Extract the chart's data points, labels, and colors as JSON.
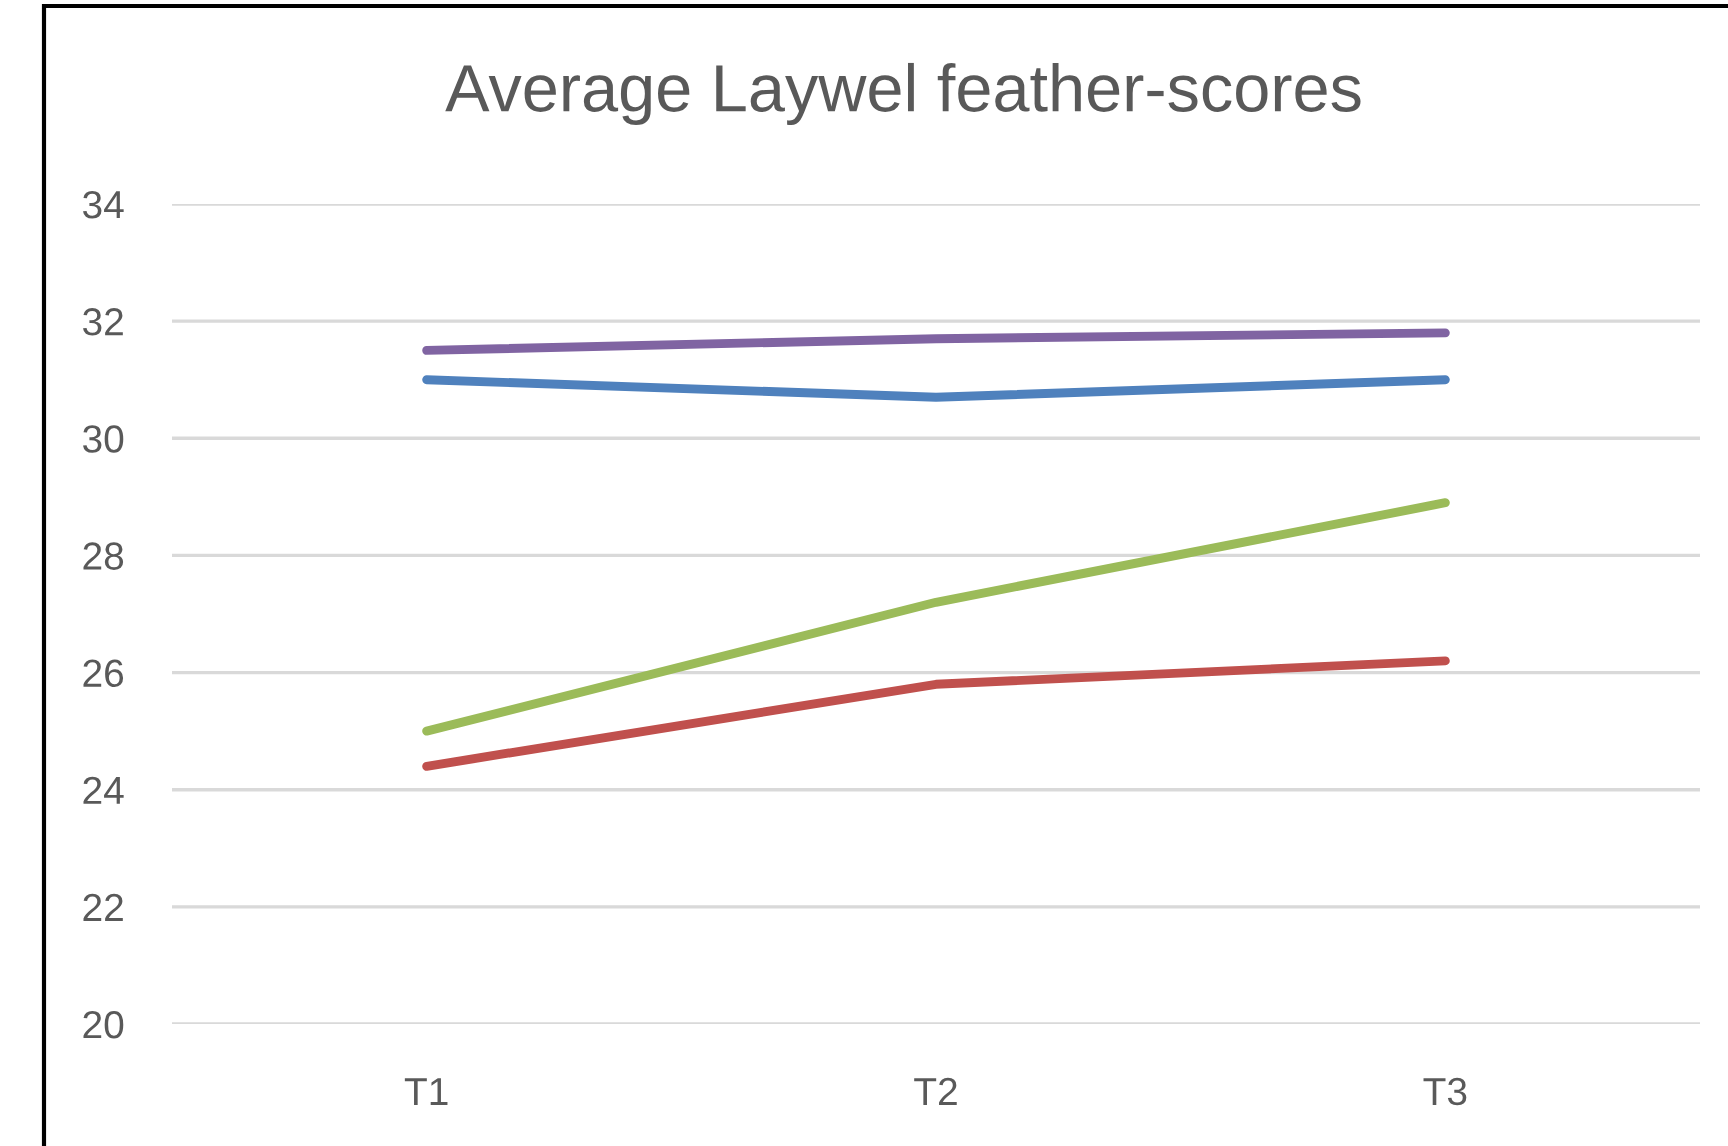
{
  "chart_data": {
    "type": "line",
    "title": "Average Laywel feather-scores",
    "categories": [
      "T1",
      "T2",
      "T3"
    ],
    "series": [
      {
        "color": "#4f81bd",
        "values": [
          31.0,
          30.7,
          31.0
        ]
      },
      {
        "color": "#c0504d",
        "values": [
          24.4,
          25.8,
          26.2
        ]
      },
      {
        "color": "#9bbb59",
        "values": [
          25.0,
          27.2,
          28.9
        ]
      },
      {
        "color": "#8064a2",
        "values": [
          31.5,
          31.7,
          31.8
        ]
      }
    ],
    "ylim": [
      20,
      34
    ],
    "yticks": [
      20,
      22,
      24,
      26,
      28,
      30,
      32,
      34
    ],
    "grid": "y",
    "line_style": "solid"
  }
}
